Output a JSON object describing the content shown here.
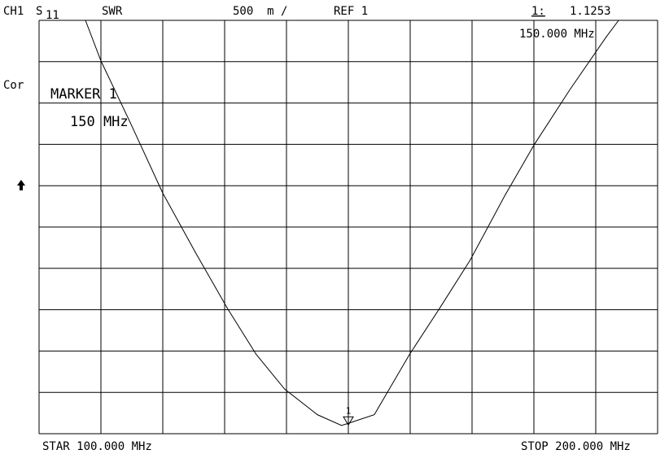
{
  "header": {
    "channel": "CH1",
    "param": "S",
    "param_sub": "11",
    "format": "SWR",
    "scale": "500  m /",
    "ref": "REF 1",
    "marker_id": "1:",
    "marker_freq": "150.000 MHz",
    "cor": "Cor"
  },
  "marker_box": {
    "title": "MARKER 1",
    "freq": "150 MHz"
  },
  "footer": {
    "start": "STAR 100.000 MHz",
    "stop": "STOP 200.000 MHz"
  },
  "chart_data": {
    "type": "line",
    "x": [
      107.5,
      110,
      114.7,
      120,
      125.3,
      130.5,
      135.1,
      139.7,
      145,
      148.9,
      150,
      154.2,
      159.9,
      164.7,
      169.7,
      175.3,
      180,
      185.8,
      191.7,
      193.7
    ],
    "series": [
      {
        "color": "#000000",
        "values": [
          6.0,
          5.51,
          4.77,
          3.91,
          3.19,
          2.51,
          1.96,
          1.54,
          1.23,
          1.1,
          1.1253,
          1.23,
          1.96,
          2.51,
          3.1,
          3.88,
          4.49,
          5.16,
          5.8,
          6.0
        ]
      }
    ],
    "xlim": [
      100,
      200
    ],
    "ylim": [
      1,
      6
    ],
    "xticks": [
      100,
      110,
      120,
      130,
      140,
      150,
      160,
      170,
      180,
      190,
      200
    ],
    "yticks": [
      1,
      1.5,
      2,
      2.5,
      3,
      3.5,
      4,
      4.5,
      5,
      5.5,
      6
    ],
    "grid": true,
    "marker": {
      "label": "1",
      "x": 150,
      "value": 1.1253
    }
  }
}
